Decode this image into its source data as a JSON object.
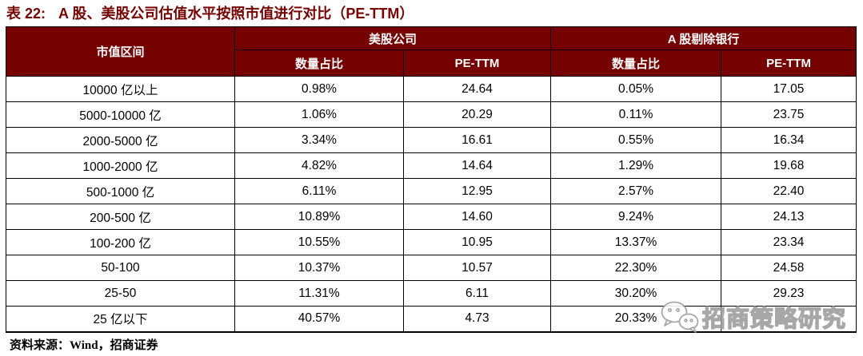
{
  "page": {
    "title_label": "表 22:",
    "title_text": "A 股、美股公司估值水平按照市值进行对比（PE-TTM）",
    "source_note": "资料来源：Wind，招商证券"
  },
  "colors": {
    "maroon": "#750101",
    "header_text": "#ffffff",
    "body_text": "#000000",
    "watermark_gray": "#9b9b9b"
  },
  "table": {
    "col_market_cap": "市值区间",
    "groups": [
      {
        "label": "美股公司",
        "sub": [
          "数量占比",
          "PE-TTM"
        ]
      },
      {
        "label": "A 股剔除银行",
        "sub": [
          "数量占比",
          "PE-TTM"
        ]
      }
    ],
    "rows": [
      [
        "10000 亿以上",
        "0.98%",
        "24.64",
        "0.05%",
        "17.05"
      ],
      [
        "5000-10000 亿",
        "1.06%",
        "20.29",
        "0.11%",
        "23.75"
      ],
      [
        "2000-5000 亿",
        "3.34%",
        "16.61",
        "0.55%",
        "16.34"
      ],
      [
        "1000-2000 亿",
        "4.82%",
        "14.64",
        "1.29%",
        "19.68"
      ],
      [
        "500-1000 亿",
        "6.11%",
        "12.95",
        "2.57%",
        "22.40"
      ],
      [
        "200-500 亿",
        "10.89%",
        "14.60",
        "9.24%",
        "24.13"
      ],
      [
        "100-200 亿",
        "10.55%",
        "10.95",
        "13.37%",
        "23.34"
      ],
      [
        "50-100",
        "10.37%",
        "10.57",
        "22.30%",
        "24.58"
      ],
      [
        "25-50",
        "11.31%",
        "6.11",
        "30.20%",
        "29.23"
      ],
      [
        "25 亿以下",
        "40.57%",
        "4.73",
        "20.33%",
        ""
      ]
    ]
  },
  "watermark": {
    "icon": "wechat-icon",
    "text": "招商策略研究"
  }
}
